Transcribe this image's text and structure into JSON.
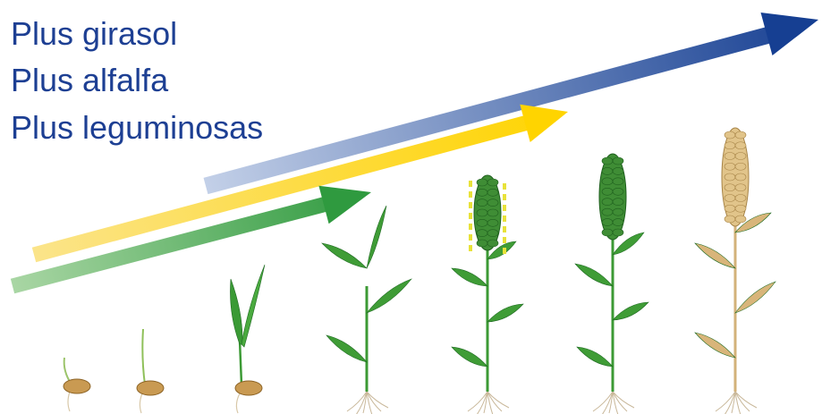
{
  "labels": [
    "Plus girasol",
    "Plus alfalfa",
    "Plus leguminosas"
  ]
}
